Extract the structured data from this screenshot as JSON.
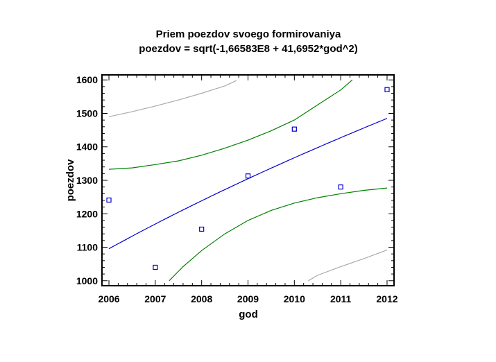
{
  "chart_data": {
    "type": "scatter",
    "title": "Priem poezdov svoego formirovaniya",
    "subtitle": "poezdov = sqrt(-1,66583E8 + 41,6952*god^2)",
    "xlabel": "god",
    "ylabel": "poezdov",
    "xlim": [
      2005.85,
      2012.15
    ],
    "ylim": [
      985,
      1615
    ],
    "x_ticks": [
      "2006",
      "2007",
      "2008",
      "2009",
      "2010",
      "2011",
      "2012"
    ],
    "y_ticks": [
      "1000",
      "1100",
      "1200",
      "1300",
      "1400",
      "1500",
      "1600"
    ],
    "points": [
      {
        "x": 2006,
        "y": 1241
      },
      {
        "x": 2007,
        "y": 1040
      },
      {
        "x": 2008,
        "y": 1154
      },
      {
        "x": 2009,
        "y": 1313
      },
      {
        "x": 2010,
        "y": 1453
      },
      {
        "x": 2011,
        "y": 1280
      },
      {
        "x": 2012,
        "y": 1571
      }
    ],
    "model": {
      "a": -166583000,
      "b": 41.6952
    },
    "series": [
      {
        "role": "fit",
        "color": "#0000cc"
      },
      {
        "role": "confidence-lower",
        "color": "#008000",
        "x": [
          2007.3,
          2007.6,
          2008.0,
          2008.5,
          2009.0,
          2009.5,
          2010.0,
          2010.5,
          2011.0,
          2011.5,
          2012.0
        ],
        "y": [
          1000,
          1042,
          1090,
          1140,
          1180,
          1210,
          1232,
          1248,
          1260,
          1270,
          1277
        ]
      },
      {
        "role": "confidence-upper",
        "color": "#008000",
        "x": [
          2006.0,
          2006.5,
          2007.0,
          2007.5,
          2008.0,
          2008.5,
          2009.0,
          2009.5,
          2010.0,
          2010.5,
          2011.0,
          2011.25
        ],
        "y": [
          1333,
          1337,
          1347,
          1358,
          1375,
          1396,
          1420,
          1448,
          1480,
          1525,
          1570,
          1600
        ]
      },
      {
        "role": "prediction-lower",
        "color": "#aaaaaa",
        "x": [
          2010.3,
          2010.5,
          2011.0,
          2011.5,
          2012.0
        ],
        "y": [
          1000,
          1016,
          1042,
          1066,
          1092
        ]
      },
      {
        "role": "prediction-upper",
        "color": "#aaaaaa",
        "x": [
          2006.0,
          2006.5,
          2007.0,
          2007.5,
          2008.0,
          2008.5,
          2008.75
        ],
        "y": [
          1490,
          1505,
          1522,
          1540,
          1560,
          1582,
          1598
        ]
      }
    ],
    "marker_color": "#0000cc",
    "grid": false,
    "legend": "none"
  }
}
